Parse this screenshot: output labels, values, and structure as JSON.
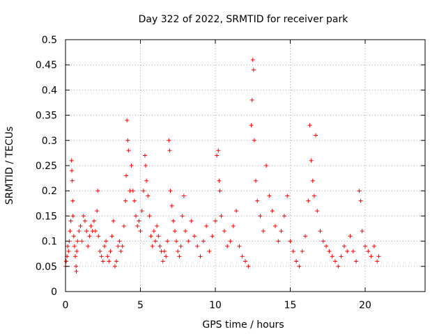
{
  "chart_data": {
    "type": "scatter",
    "title": "Day 322 of 2022, SRMTID for receiver park",
    "xlabel": "GPS time / hours",
    "ylabel": "SRMTID / TECUs",
    "xlim": [
      0,
      24
    ],
    "ylim": [
      0,
      0.5
    ],
    "x_ticks": [
      0,
      5,
      10,
      15,
      20
    ],
    "x_tick_labels": [
      "0",
      "5",
      "10",
      "15",
      "20"
    ],
    "y_ticks": [
      0,
      0.05,
      0.1,
      0.15,
      0.2,
      0.25,
      0.3,
      0.35,
      0.4,
      0.45,
      0.5
    ],
    "y_tick_labels": [
      "0",
      "0.05",
      "0.1",
      "0.15",
      "0.2",
      "0.25",
      "0.3",
      "0.35",
      "0.4",
      "0.45",
      "0.5"
    ],
    "grid": true,
    "marker": "plus",
    "color": "#ff0000",
    "series": [
      {
        "name": "SRMTID",
        "points": [
          [
            0.0,
            0.05
          ],
          [
            0.05,
            0.06
          ],
          [
            0.1,
            0.07
          ],
          [
            0.15,
            0.09
          ],
          [
            0.2,
            0.08
          ],
          [
            0.25,
            0.1
          ],
          [
            0.3,
            0.12
          ],
          [
            0.35,
            0.14
          ],
          [
            0.4,
            0.26
          ],
          [
            0.42,
            0.24
          ],
          [
            0.45,
            0.22
          ],
          [
            0.48,
            0.18
          ],
          [
            0.5,
            0.15
          ],
          [
            0.55,
            0.11
          ],
          [
            0.6,
            0.09
          ],
          [
            0.65,
            0.07
          ],
          [
            0.7,
            0.05
          ],
          [
            0.72,
            0.04
          ],
          [
            0.75,
            0.08
          ],
          [
            0.8,
            0.1
          ],
          [
            0.9,
            0.12
          ],
          [
            1.0,
            0.13
          ],
          [
            1.1,
            0.1
          ],
          [
            1.2,
            0.15
          ],
          [
            1.3,
            0.14
          ],
          [
            1.4,
            0.12
          ],
          [
            1.5,
            0.09
          ],
          [
            1.6,
            0.11
          ],
          [
            1.7,
            0.13
          ],
          [
            1.8,
            0.12
          ],
          [
            1.9,
            0.14
          ],
          [
            2.0,
            0.12
          ],
          [
            2.1,
            0.16
          ],
          [
            2.15,
            0.2
          ],
          [
            2.2,
            0.11
          ],
          [
            2.3,
            0.08
          ],
          [
            2.4,
            0.07
          ],
          [
            2.5,
            0.06
          ],
          [
            2.6,
            0.09
          ],
          [
            2.7,
            0.1
          ],
          [
            2.8,
            0.07
          ],
          [
            2.9,
            0.06
          ],
          [
            3.0,
            0.08
          ],
          [
            3.1,
            0.11
          ],
          [
            3.2,
            0.14
          ],
          [
            3.3,
            0.05
          ],
          [
            3.4,
            0.06
          ],
          [
            3.5,
            0.09
          ],
          [
            3.6,
            0.1
          ],
          [
            3.7,
            0.08
          ],
          [
            3.8,
            0.09
          ],
          [
            3.9,
            0.13
          ],
          [
            4.0,
            0.18
          ],
          [
            4.05,
            0.23
          ],
          [
            4.1,
            0.34
          ],
          [
            4.15,
            0.3
          ],
          [
            4.2,
            0.28
          ],
          [
            4.3,
            0.2
          ],
          [
            4.4,
            0.25
          ],
          [
            4.5,
            0.2
          ],
          [
            4.6,
            0.18
          ],
          [
            4.7,
            0.15
          ],
          [
            4.8,
            0.13
          ],
          [
            4.9,
            0.14
          ],
          [
            5.0,
            0.12
          ],
          [
            5.1,
            0.16
          ],
          [
            5.2,
            0.2
          ],
          [
            5.3,
            0.27
          ],
          [
            5.35,
            0.25
          ],
          [
            5.4,
            0.22
          ],
          [
            5.5,
            0.19
          ],
          [
            5.6,
            0.15
          ],
          [
            5.7,
            0.11
          ],
          [
            5.8,
            0.09
          ],
          [
            5.9,
            0.12
          ],
          [
            6.0,
            0.1
          ],
          [
            6.1,
            0.13
          ],
          [
            6.2,
            0.11
          ],
          [
            6.3,
            0.09
          ],
          [
            6.4,
            0.08
          ],
          [
            6.5,
            0.06
          ],
          [
            6.6,
            0.08
          ],
          [
            6.7,
            0.07
          ],
          [
            6.8,
            0.1
          ],
          [
            6.9,
            0.3
          ],
          [
            6.95,
            0.28
          ],
          [
            7.0,
            0.2
          ],
          [
            7.1,
            0.17
          ],
          [
            7.2,
            0.14
          ],
          [
            7.3,
            0.12
          ],
          [
            7.4,
            0.1
          ],
          [
            7.5,
            0.08
          ],
          [
            7.6,
            0.07
          ],
          [
            7.7,
            0.09
          ],
          [
            7.8,
            0.15
          ],
          [
            7.9,
            0.19
          ],
          [
            8.0,
            0.12
          ],
          [
            8.2,
            0.1
          ],
          [
            8.4,
            0.14
          ],
          [
            8.6,
            0.11
          ],
          [
            8.8,
            0.09
          ],
          [
            9.0,
            0.07
          ],
          [
            9.2,
            0.1
          ],
          [
            9.4,
            0.13
          ],
          [
            9.6,
            0.08
          ],
          [
            9.8,
            0.11
          ],
          [
            10.0,
            0.14
          ],
          [
            10.1,
            0.27
          ],
          [
            10.2,
            0.28
          ],
          [
            10.25,
            0.22
          ],
          [
            10.3,
            0.2
          ],
          [
            10.4,
            0.15
          ],
          [
            10.6,
            0.12
          ],
          [
            10.8,
            0.09
          ],
          [
            11.0,
            0.1
          ],
          [
            11.2,
            0.13
          ],
          [
            11.4,
            0.16
          ],
          [
            11.6,
            0.09
          ],
          [
            11.8,
            0.07
          ],
          [
            12.0,
            0.06
          ],
          [
            12.2,
            0.05
          ],
          [
            12.4,
            0.33
          ],
          [
            12.45,
            0.38
          ],
          [
            12.5,
            0.46
          ],
          [
            12.55,
            0.44
          ],
          [
            12.6,
            0.3
          ],
          [
            12.7,
            0.22
          ],
          [
            12.8,
            0.18
          ],
          [
            13.0,
            0.15
          ],
          [
            13.2,
            0.12
          ],
          [
            13.4,
            0.25
          ],
          [
            13.6,
            0.19
          ],
          [
            13.8,
            0.16
          ],
          [
            14.0,
            0.13
          ],
          [
            14.2,
            0.1
          ],
          [
            14.4,
            0.12
          ],
          [
            14.6,
            0.15
          ],
          [
            14.8,
            0.19
          ],
          [
            15.0,
            0.1
          ],
          [
            15.2,
            0.08
          ],
          [
            15.4,
            0.06
          ],
          [
            15.6,
            0.05
          ],
          [
            15.8,
            0.08
          ],
          [
            16.0,
            0.11
          ],
          [
            16.2,
            0.18
          ],
          [
            16.3,
            0.33
          ],
          [
            16.4,
            0.26
          ],
          [
            16.5,
            0.22
          ],
          [
            16.6,
            0.19
          ],
          [
            16.7,
            0.31
          ],
          [
            16.8,
            0.16
          ],
          [
            17.0,
            0.12
          ],
          [
            17.2,
            0.1
          ],
          [
            17.4,
            0.09
          ],
          [
            17.6,
            0.08
          ],
          [
            17.8,
            0.07
          ],
          [
            18.0,
            0.06
          ],
          [
            18.2,
            0.05
          ],
          [
            18.4,
            0.07
          ],
          [
            18.6,
            0.09
          ],
          [
            18.8,
            0.08
          ],
          [
            19.0,
            0.11
          ],
          [
            19.2,
            0.08
          ],
          [
            19.4,
            0.06
          ],
          [
            19.6,
            0.2
          ],
          [
            19.7,
            0.18
          ],
          [
            19.8,
            0.12
          ],
          [
            20.0,
            0.09
          ],
          [
            20.2,
            0.08
          ],
          [
            20.4,
            0.07
          ],
          [
            20.6,
            0.09
          ],
          [
            20.8,
            0.06
          ],
          [
            20.9,
            0.07
          ]
        ]
      }
    ]
  }
}
